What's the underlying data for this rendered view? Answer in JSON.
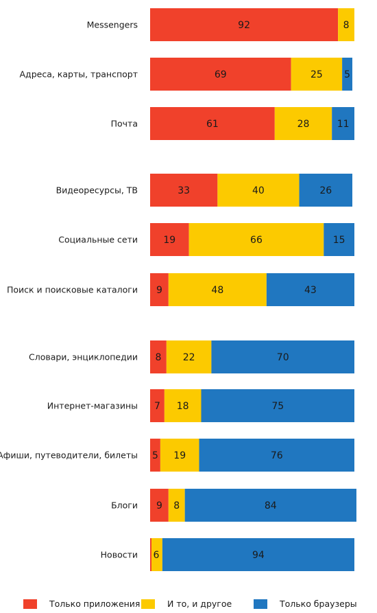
{
  "chart_data": {
    "type": "bar",
    "orientation": "horizontal",
    "stacked": true,
    "categories": [
      "Messengers",
      "Адреса, карты, транспорт",
      "Почта",
      "Видеоресурсы, ТВ",
      "Социальные сети",
      "Поиск и поисковые каталоги",
      "Словари, энциклопедии",
      "Интернет-магазины",
      "Афиши, путеводители, билеты",
      "Блоги",
      "Новости"
    ],
    "series": [
      {
        "name": "Только приложения",
        "color": "#f0412b",
        "values": [
          92,
          69,
          61,
          33,
          19,
          9,
          8,
          7,
          5,
          9,
          0
        ]
      },
      {
        "name": "И то, и другое",
        "color": "#fcca00",
        "values": [
          8,
          25,
          28,
          40,
          66,
          48,
          22,
          18,
          19,
          8,
          6
        ]
      },
      {
        "name": "Только браузеры",
        "color": "#2077c0",
        "values": [
          0,
          5,
          11,
          26,
          15,
          43,
          70,
          75,
          76,
          84,
          94
        ]
      }
    ],
    "legend_position": "bottom",
    "grid": false
  }
}
